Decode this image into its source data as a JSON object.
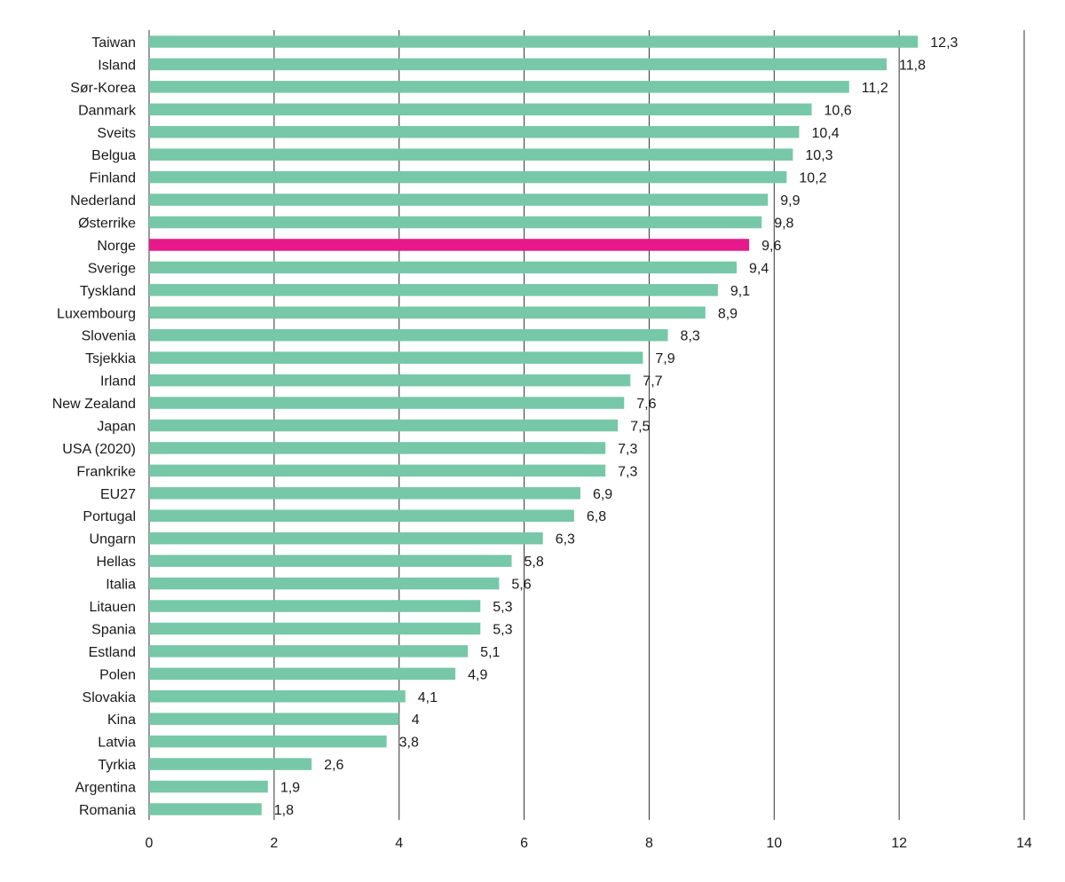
{
  "chart_data": {
    "type": "bar",
    "orientation": "horizontal",
    "categories": [
      "Taiwan",
      "Island",
      "Sør-Korea",
      "Danmark",
      "Sveits",
      "Belgua",
      "Finland",
      "Nederland",
      "Østerrike",
      "Norge",
      "Sverige",
      "Tyskland",
      "Luxembourg",
      "Slovenia",
      "Tsjekkia",
      "Irland",
      "New Zealand",
      "Japan",
      "USA (2020)",
      "Frankrike",
      "EU27",
      "Portugal",
      "Ungarn",
      "Hellas",
      "Italia",
      "Litauen",
      "Spania",
      "Estland",
      "Polen",
      "Slovakia",
      "Kina",
      "Latvia",
      "Tyrkia",
      "Argentina",
      "Romania"
    ],
    "values": [
      12.3,
      11.8,
      11.2,
      10.6,
      10.4,
      10.3,
      10.2,
      9.9,
      9.8,
      9.6,
      9.4,
      9.1,
      8.9,
      8.3,
      7.9,
      7.7,
      7.6,
      7.5,
      7.3,
      7.3,
      6.9,
      6.8,
      6.3,
      5.8,
      5.6,
      5.3,
      5.3,
      5.1,
      4.9,
      4.1,
      4,
      3.8,
      2.6,
      1.9,
      1.8
    ],
    "value_labels": [
      "12,3",
      "11,8",
      "11,2",
      "10,6",
      "10,4",
      "10,3",
      "10,2",
      "9,9",
      "9,8",
      "9,6",
      "9,4",
      "9,1",
      "8,9",
      "8,3",
      "7,9",
      "7,7",
      "7,6",
      "7,5",
      "7,3",
      "7,3",
      "6,9",
      "6,8",
      "6,3",
      "5,8",
      "5,6",
      "5,3",
      "5,3",
      "5,1",
      "4,9",
      "4,1",
      "4",
      "3,8",
      "2,6",
      "1,9",
      "1,8"
    ],
    "highlight": "Norge",
    "xlim": [
      0,
      14
    ],
    "xticks": [
      0,
      2,
      4,
      6,
      8,
      10,
      12,
      14
    ],
    "grid": true,
    "title": "",
    "xlabel": "",
    "ylabel": "",
    "colors": {
      "bar": "#76c8a8",
      "highlight": "#e6198a"
    }
  }
}
